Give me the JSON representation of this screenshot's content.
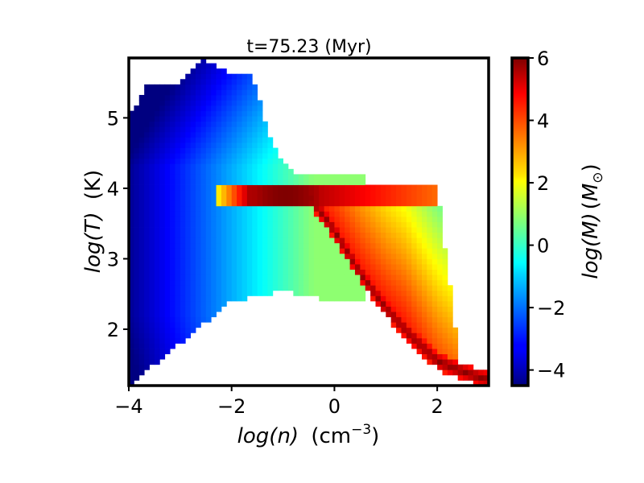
{
  "chart_data": {
    "type": "heatmap",
    "title": "t=75.23 (Myr)",
    "xlabel": {
      "var": "log(n)",
      "unit": "(cm",
      "exp": "−3",
      "close": ")"
    },
    "ylabel": {
      "var": "log(T)",
      "unit": "(K)"
    },
    "colorbar_label": {
      "var": "log(M)",
      "sub": "⊙"
    },
    "xlim": [
      -4.0,
      3.0
    ],
    "ylim": [
      1.2,
      5.85
    ],
    "clim": [
      -4.5,
      6.0
    ],
    "xticks": [
      -4,
      -2,
      0,
      2
    ],
    "xtick_labels": [
      "−4",
      "−2",
      "0",
      "2"
    ],
    "yticks": [
      2,
      3,
      4,
      5
    ],
    "ytick_labels": [
      "2",
      "3",
      "4",
      "5"
    ],
    "cticks": [
      -4,
      -2,
      0,
      2,
      4,
      6
    ],
    "ctick_labels": [
      "−4",
      "−2",
      "0",
      "2",
      "4",
      "6"
    ],
    "colormap": "jet",
    "bins": {
      "nx": 70,
      "ny": 62
    },
    "structure": {
      "diffuse_hot_gas": {
        "log_n_range": [
          -4.0,
          0.6
        ],
        "upper_T_envelope": [
          [
            -4.0,
            5.0
          ],
          [
            -3.6,
            5.5
          ],
          [
            -3.0,
            5.5
          ],
          [
            -2.6,
            5.85
          ],
          [
            -2.0,
            5.6
          ],
          [
            -1.6,
            5.6
          ],
          [
            -1.2,
            4.6
          ],
          [
            -0.8,
            4.2
          ]
        ],
        "lower_T_envelope": [
          [
            -4.0,
            1.2
          ],
          [
            -3.0,
            1.8
          ],
          [
            -2.0,
            2.4
          ],
          [
            -1.0,
            2.55
          ],
          [
            -0.5,
            2.45
          ],
          [
            0.4,
            2.4
          ]
        ],
        "log_M_range": [
          -4.3,
          1.5
        ]
      },
      "warm_plateau": {
        "log_T": 4.0,
        "log_n_range": [
          -2.3,
          2.0
        ],
        "peak_log_n": [
          -1.6,
          -0.3
        ],
        "peak_log_M": 6.0
      },
      "cooling_track": {
        "points": [
          [
            -0.5,
            3.9
          ],
          [
            0.0,
            3.4
          ],
          [
            0.5,
            2.8
          ],
          [
            1.0,
            2.3
          ],
          [
            1.5,
            1.9
          ],
          [
            2.0,
            1.55
          ],
          [
            2.5,
            1.4
          ],
          [
            2.9,
            1.3
          ]
        ],
        "peak_log_M": 6.0
      },
      "dense_warm_fan": {
        "log_n_range": [
          0.0,
          2.5
        ],
        "log_M_range": [
          2.0,
          4.5
        ]
      }
    }
  }
}
